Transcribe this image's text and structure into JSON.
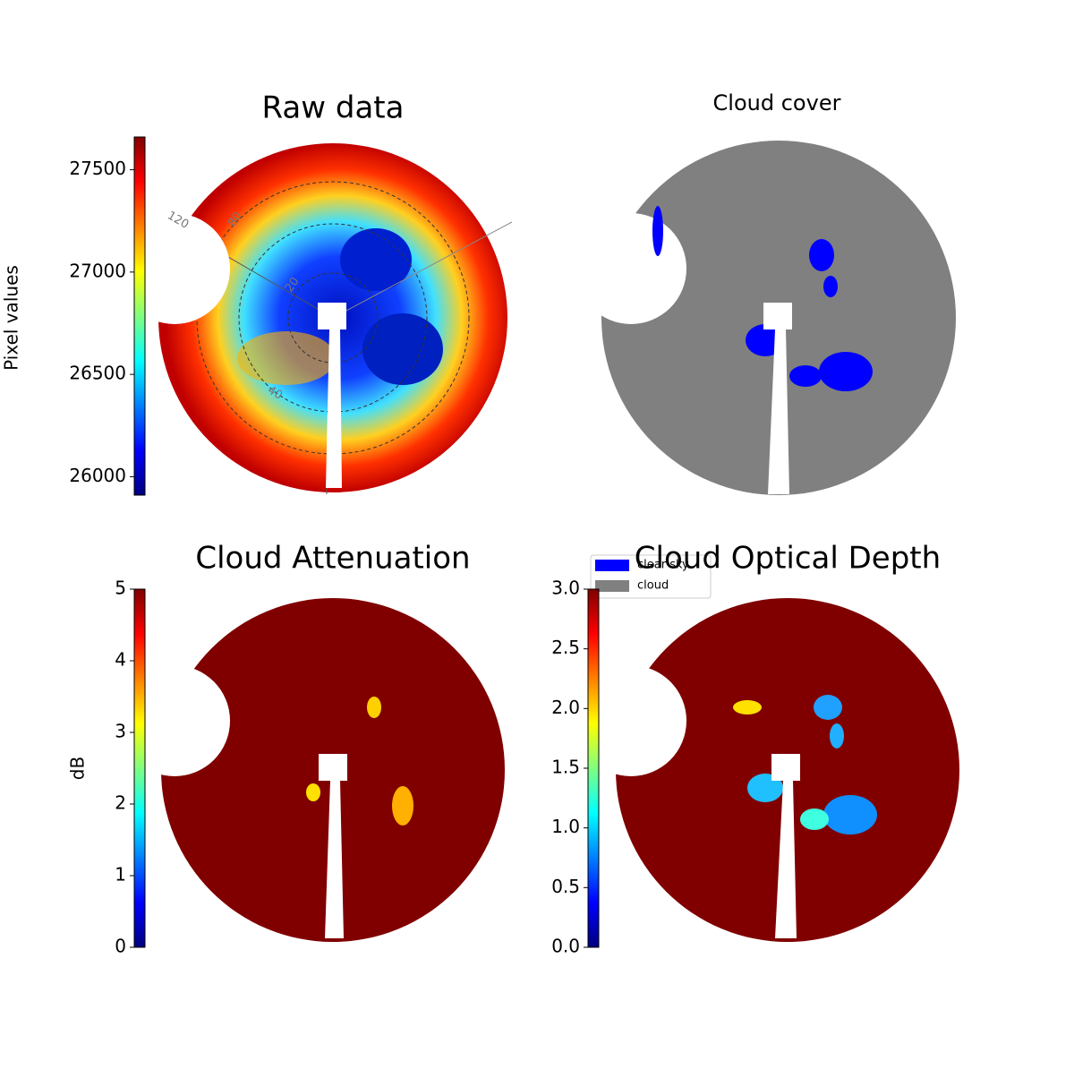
{
  "chart_data": [
    {
      "type": "image",
      "title": "Raw data",
      "colormap": "jet",
      "ylabel": "Pixel values",
      "ylim": [
        25910,
        27660
      ],
      "yticks": [
        26000,
        26500,
        27000,
        27500
      ],
      "annotations": [
        "120",
        "80",
        "20",
        "40"
      ]
    },
    {
      "type": "image",
      "title": "Cloud cover",
      "series": [
        {
          "name": "clear sky",
          "color": "#0000ff"
        },
        {
          "name": "cloud",
          "color": "#808080"
        }
      ]
    },
    {
      "type": "image",
      "title": "Cloud Attenuation",
      "colormap": "jet",
      "ylabel": "dB",
      "ylim": [
        0,
        5
      ],
      "yticks": [
        0,
        1,
        2,
        3,
        4,
        5
      ]
    },
    {
      "type": "image",
      "title": "Cloud Optical Depth",
      "colormap": "jet",
      "ylim": [
        0,
        3
      ],
      "yticks": [
        {
          "value": 0,
          "label": "0.0"
        },
        {
          "value": 0.5,
          "label": "0.5"
        },
        {
          "value": 1,
          "label": "1.0"
        },
        {
          "value": 1.5,
          "label": "1.5"
        },
        {
          "value": 2,
          "label": "2.0"
        },
        {
          "value": 2.5,
          "label": "2.5"
        },
        {
          "value": 3,
          "label": "3.0"
        }
      ]
    }
  ]
}
